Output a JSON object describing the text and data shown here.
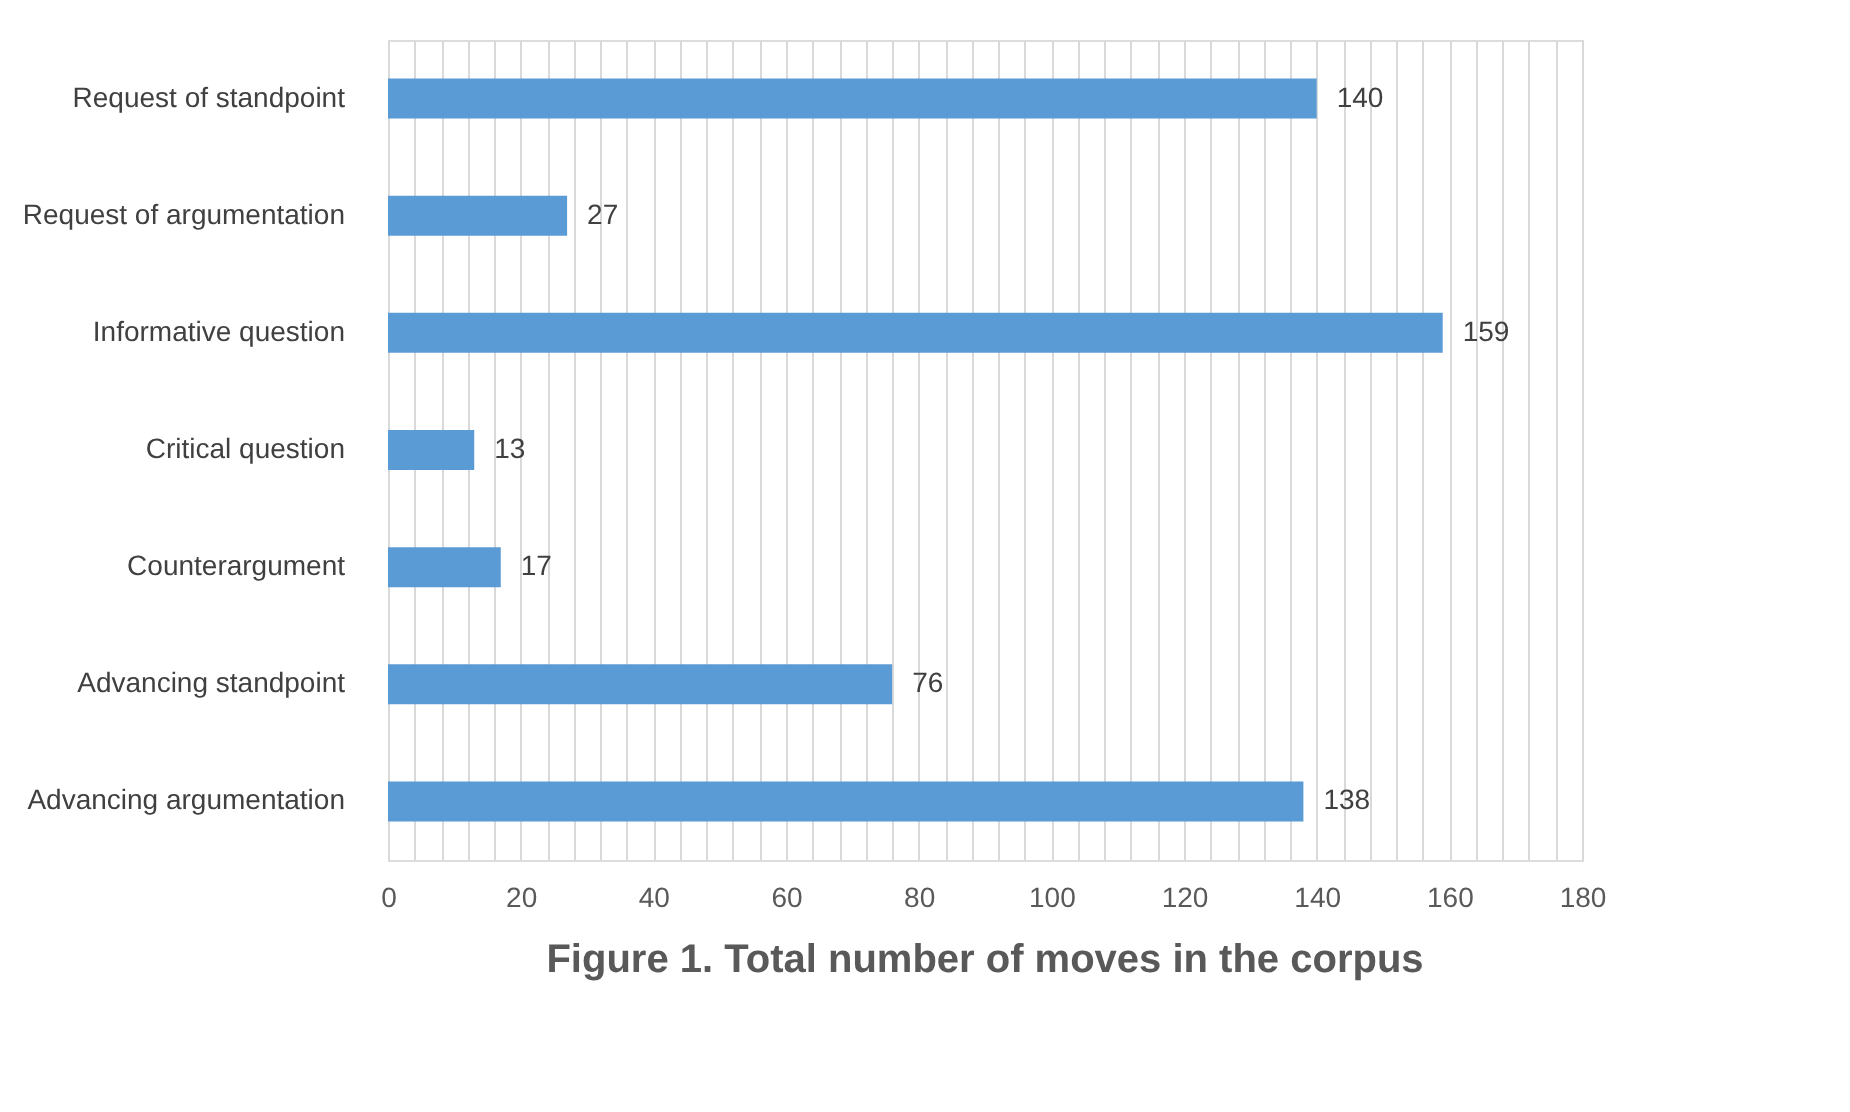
{
  "chart_data": {
    "type": "bar",
    "orientation": "horizontal",
    "title": "Figure 1. Total number of moves in the corpus",
    "categories": [
      "Request of standpoint",
      "Request of argumentation",
      "Informative question",
      "Critical question",
      "Counterargument",
      "Advancing standpoint",
      "Advancing argumentation"
    ],
    "values": [
      140,
      27,
      159,
      13,
      17,
      76,
      138
    ],
    "color": "#5b9bd5",
    "data_labels": true,
    "xlim": [
      0,
      180
    ],
    "xticks": [
      0,
      {
        "value": 4,
        "label": null
      },
      {
        "value": 8,
        "label": null
      },
      {
        "value": 12,
        "label": null
      },
      {
        "value": 16,
        "label": null
      },
      20,
      {
        "value": 24,
        "label": null
      },
      {
        "value": 28,
        "label": null
      },
      {
        "value": 32,
        "label": null
      },
      {
        "value": 36,
        "label": null
      },
      40,
      {
        "value": 44,
        "label": null
      },
      {
        "value": 48,
        "label": null
      },
      {
        "value": 52,
        "label": null
      },
      {
        "value": 56,
        "label": null
      },
      60,
      {
        "value": 64,
        "label": null
      },
      {
        "value": 68,
        "label": null
      },
      {
        "value": 72,
        "label": null
      },
      {
        "value": 76,
        "label": null
      },
      80,
      {
        "value": 84,
        "label": null
      },
      {
        "value": 88,
        "label": null
      },
      {
        "value": 92,
        "label": null
      },
      {
        "value": 96,
        "label": null
      },
      100,
      {
        "value": 104,
        "label": null
      },
      {
        "value": 108,
        "label": null
      },
      {
        "value": 112,
        "label": null
      },
      {
        "value": 116,
        "label": null
      },
      120,
      {
        "value": 124,
        "label": null
      },
      {
        "value": 128,
        "label": null
      },
      {
        "value": 132,
        "label": null
      },
      {
        "value": 136,
        "label": null
      },
      140,
      {
        "value": 144,
        "label": null
      },
      {
        "value": 148,
        "label": null
      },
      {
        "value": 152,
        "label": null
      },
      {
        "value": 156,
        "label": null
      },
      160,
      {
        "value": 164,
        "label": null
      },
      {
        "value": 168,
        "label": null
      },
      {
        "value": 172,
        "label": null
      },
      {
        "value": 176,
        "label": null
      },
      180
    ],
    "grid": "x"
  }
}
